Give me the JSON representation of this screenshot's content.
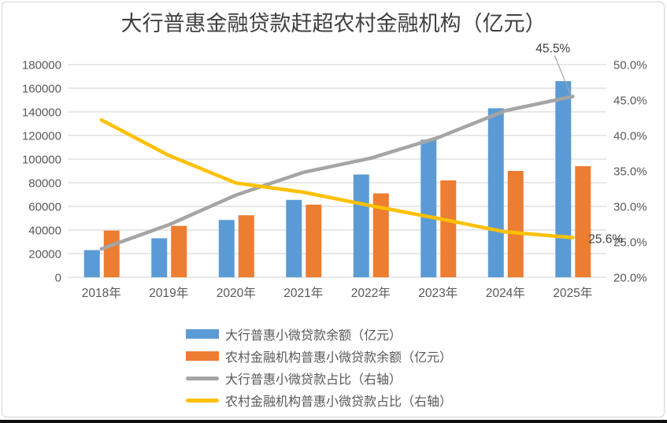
{
  "title": "大行普惠金融贷款赶超农村金融机构（亿元）",
  "colors": {
    "blue": "#5B9BD5",
    "orange": "#ED7D31",
    "gray": "#A5A5A5",
    "yellow": "#FFC000",
    "gridline": "#D9D9D9",
    "axis_line": "#D9D9D9",
    "axis_text": "#595959",
    "title_text": "#404040"
  },
  "chart_data": {
    "type": "combo_bar_line",
    "title": "大行普惠金融贷款赶超农村金融机构（亿元）",
    "categories": [
      "2018年",
      "2019年",
      "2020年",
      "2021年",
      "2022年",
      "2023年",
      "2024年",
      "2025年"
    ],
    "bar_series": [
      {
        "name": "大行普惠小微贷款余额（亿元）",
        "axis": "left",
        "color": "#5B9BD5",
        "values": [
          23000,
          33000,
          48500,
          65500,
          87000,
          116500,
          143000,
          166000
        ]
      },
      {
        "name": "农村金融机构普惠小微贷款余额（亿元）",
        "axis": "left",
        "color": "#ED7D31",
        "values": [
          39500,
          43500,
          52500,
          61500,
          71000,
          82000,
          90000,
          94000
        ]
      }
    ],
    "line_series": [
      {
        "name": "大行普惠小微贷款占比（右轴）",
        "axis": "right",
        "color": "#A5A5A5",
        "values": [
          24.0,
          27.4,
          31.6,
          34.8,
          36.8,
          39.7,
          43.5,
          45.5
        ]
      },
      {
        "name": "农村金融机构普惠小微贷款占比（右轴）",
        "axis": "right",
        "color": "#FFC000",
        "values": [
          42.2,
          37.2,
          33.3,
          32.0,
          30.1,
          28.3,
          26.4,
          25.6
        ]
      }
    ],
    "left_axis": {
      "min": 0,
      "max": 180000,
      "tick_step": 20000,
      "tick_labels": [
        "0",
        "20000",
        "40000",
        "60000",
        "80000",
        "100000",
        "120000",
        "140000",
        "160000",
        "180000"
      ]
    },
    "right_axis": {
      "min": 20,
      "max": 50,
      "tick_step": 5,
      "tick_labels": [
        "20.0%",
        "25.0%",
        "30.0%",
        "35.0%",
        "40.0%",
        "45.0%",
        "50.0%"
      ]
    },
    "annotations": [
      {
        "text": "45.5%",
        "series": "大行普惠小微贷款占比（右轴）",
        "category": "2025年",
        "leader_line": true
      },
      {
        "text": "25.6%",
        "series": "农村金融机构普惠小微贷款占比（右轴）",
        "category": "2025年",
        "leader_line": false
      }
    ],
    "legend_position": "bottom",
    "grid": true
  }
}
